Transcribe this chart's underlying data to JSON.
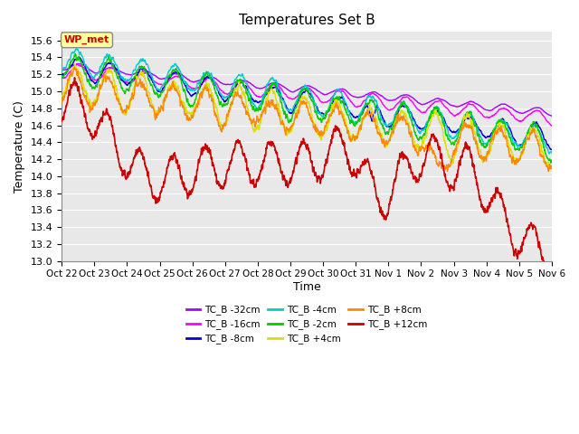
{
  "title": "Temperatures Set B",
  "xlabel": "Time",
  "ylabel": "Temperature (C)",
  "ylim": [
    13.0,
    15.7
  ],
  "yticks": [
    13.0,
    13.2,
    13.4,
    13.6,
    13.8,
    14.0,
    14.2,
    14.4,
    14.6,
    14.8,
    15.0,
    15.2,
    15.4,
    15.6
  ],
  "date_labels": [
    "Oct 22",
    "Oct 23",
    "Oct 24",
    "Oct 25",
    "Oct 26",
    "Oct 27",
    "Oct 28",
    "Oct 29",
    "Oct 30",
    "Oct 31",
    "Nov 1",
    "Nov 2",
    "Nov 3",
    "Nov 4",
    "Nov 5",
    "Nov 6"
  ],
  "series": [
    {
      "label": "TC_B -32cm",
      "color": "#aa00ff",
      "lw": 1.0
    },
    {
      "label": "TC_B -16cm",
      "color": "#ff00ff",
      "lw": 1.0
    },
    {
      "label": "TC_B -8cm",
      "color": "#0000dd",
      "lw": 1.0
    },
    {
      "label": "TC_B -4cm",
      "color": "#00cccc",
      "lw": 1.0
    },
    {
      "label": "TC_B -2cm",
      "color": "#00cc00",
      "lw": 1.0
    },
    {
      "label": "TC_B +4cm",
      "color": "#dddd00",
      "lw": 1.0
    },
    {
      "label": "TC_B +8cm",
      "color": "#ff8800",
      "lw": 1.0
    },
    {
      "label": "TC_B +12cm",
      "color": "#cc0000",
      "lw": 1.2
    }
  ],
  "annotation_label": "WP_met",
  "annotation_color": "#cc0000",
  "annotation_bg": "#ffff99",
  "plot_bg": "#e8e8e8",
  "fig_bg": "#ffffff",
  "grid_color": "#ffffff"
}
